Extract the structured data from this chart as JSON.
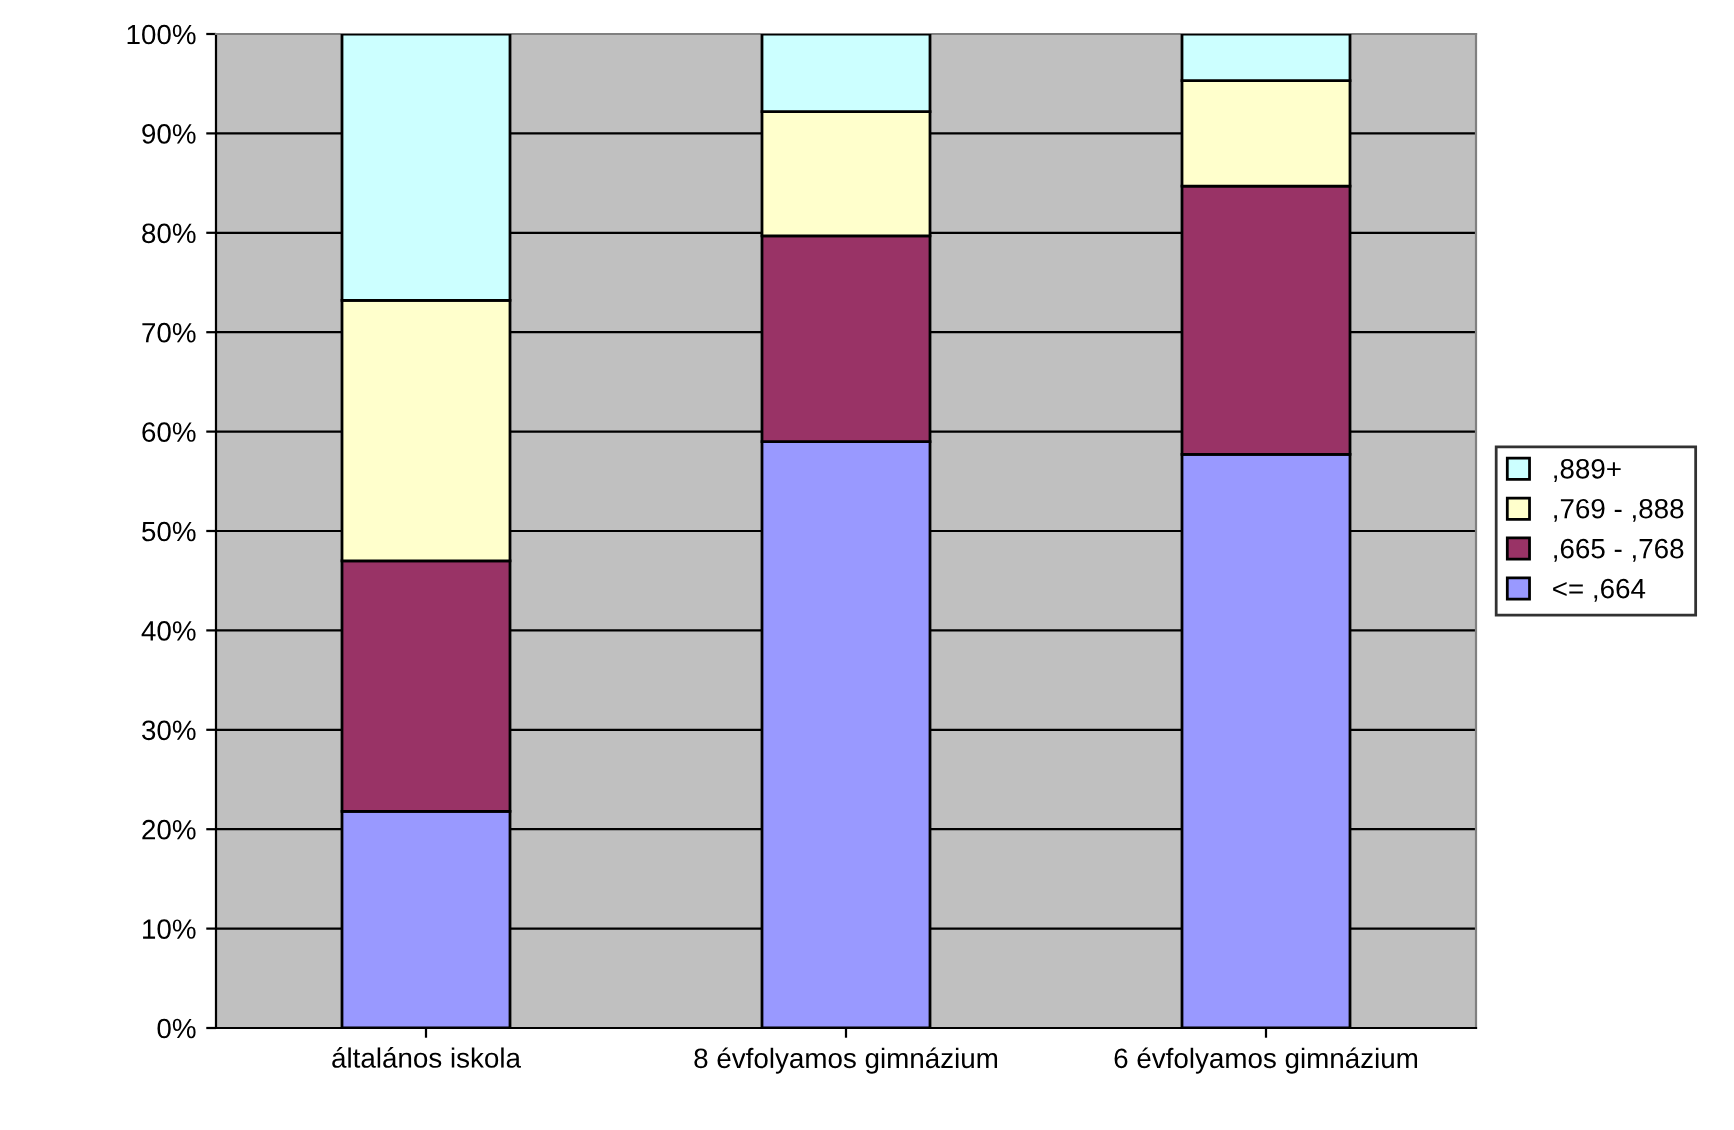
{
  "chart_data": {
    "type": "bar",
    "stacked": true,
    "categories": [
      "általános iskola",
      "8 évfolyamos gimnázium",
      "6 évfolyamos gimnázium"
    ],
    "series": [
      {
        "name": "<= ,664",
        "color": "#9999ff",
        "values": [
          21.8,
          59,
          57.7
        ]
      },
      {
        "name": ",665 - ,768",
        "color": "#993366",
        "values": [
          25.2,
          20.7,
          27
        ]
      },
      {
        "name": ",769 - ,888",
        "color": "#ffffcc",
        "values": [
          26.2,
          12.5,
          10.6
        ]
      },
      {
        "name": ",889+",
        "color": "#ccffff",
        "values": [
          26.8,
          7.8,
          4.7
        ]
      }
    ],
    "ylim": [
      0,
      100
    ],
    "yticks": [
      {
        "value": 0,
        "label": "0%"
      },
      {
        "value": 10,
        "label": "10%"
      },
      {
        "value": 20,
        "label": "20%"
      },
      {
        "value": 30,
        "label": "30%"
      },
      {
        "value": 40,
        "label": "40%"
      },
      {
        "value": 50,
        "label": "50%"
      },
      {
        "value": 60,
        "label": "60%"
      },
      {
        "value": 70,
        "label": "70%"
      },
      {
        "value": 80,
        "label": "80%"
      },
      {
        "value": 90,
        "label": "90%"
      },
      {
        "value": 100,
        "label": "100%"
      }
    ],
    "grid": "y",
    "legend": "right"
  }
}
